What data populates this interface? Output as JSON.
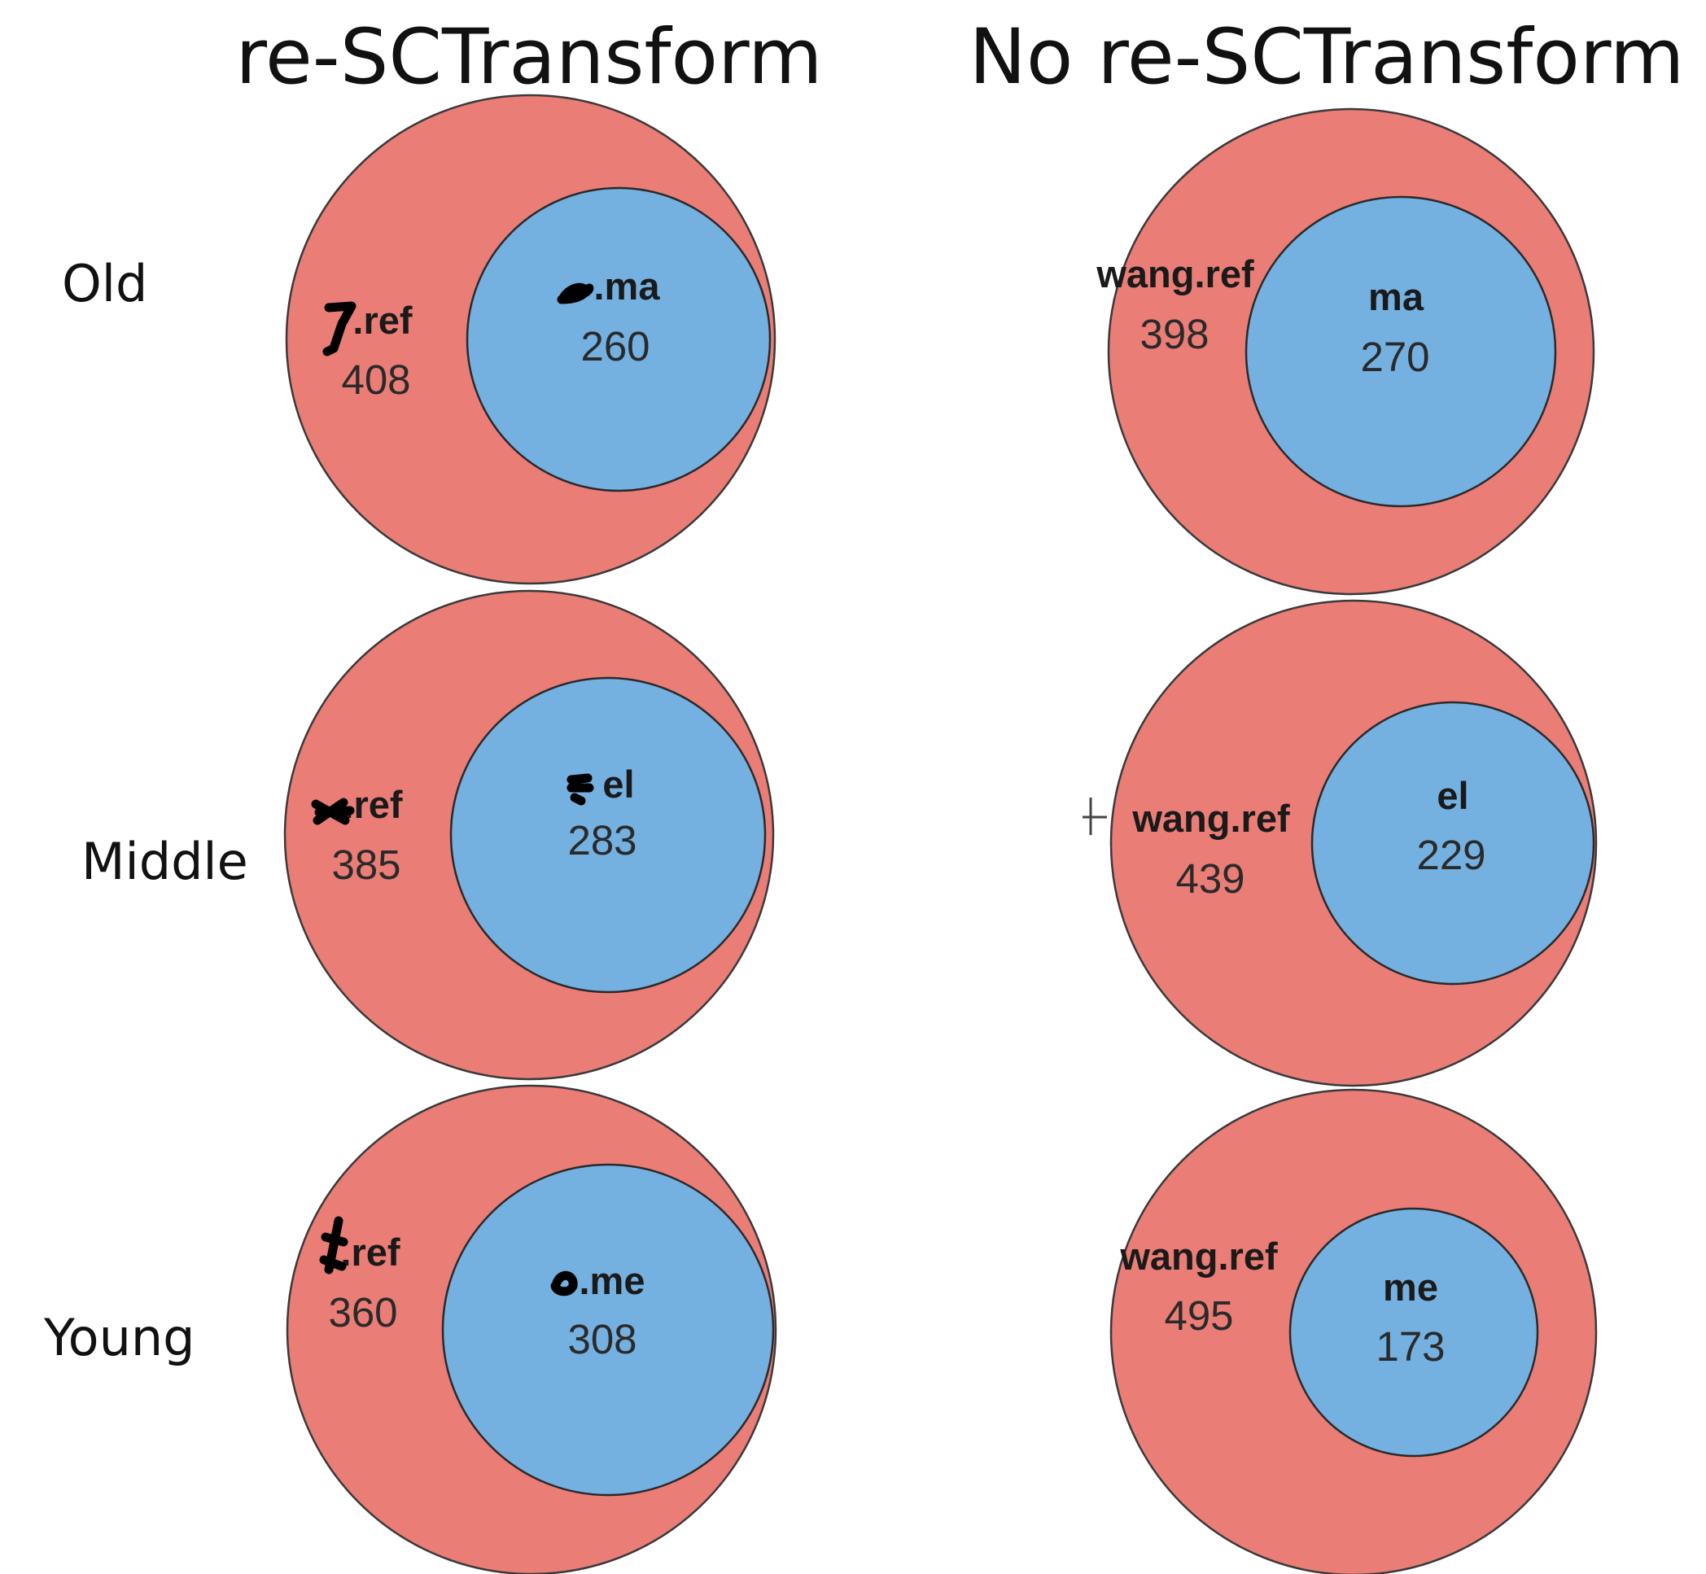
{
  "columns": [
    {
      "title": "re-SCTransform"
    },
    {
      "title": "No re-SCTransform"
    }
  ],
  "rows": [
    {
      "label": "Old"
    },
    {
      "label": "Middle"
    },
    {
      "label": "Young"
    }
  ],
  "colors": {
    "outer_fill": "#ea7d76",
    "inner_fill": "#74b0e0"
  },
  "diagrams": [
    {
      "column": "re-SCTransform",
      "row": "Old",
      "outer_label": ".ref",
      "outer_count": "408",
      "inner_label": ".ma",
      "inner_count": "260"
    },
    {
      "column": "No re-SCTransform",
      "row": "Old",
      "outer_label": "wang.ref",
      "outer_count": "398",
      "inner_label": "ma",
      "inner_count": "270"
    },
    {
      "column": "re-SCTransform",
      "row": "Middle",
      "outer_label": ".ref",
      "outer_count": "385",
      "inner_label": "el",
      "inner_count": "283"
    },
    {
      "column": "No re-SCTransform",
      "row": "Middle",
      "outer_label": "wang.ref",
      "outer_count": "439",
      "inner_label": "el",
      "inner_count": "229"
    },
    {
      "column": "re-SCTransform",
      "row": "Young",
      "outer_label": ".ref",
      "outer_count": "360",
      "inner_label": ".me",
      "inner_count": "308"
    },
    {
      "column": "No re-SCTransform",
      "row": "Young",
      "outer_label": "wang.ref",
      "outer_count": "495",
      "inner_label": "me",
      "inner_count": "173"
    }
  ]
}
